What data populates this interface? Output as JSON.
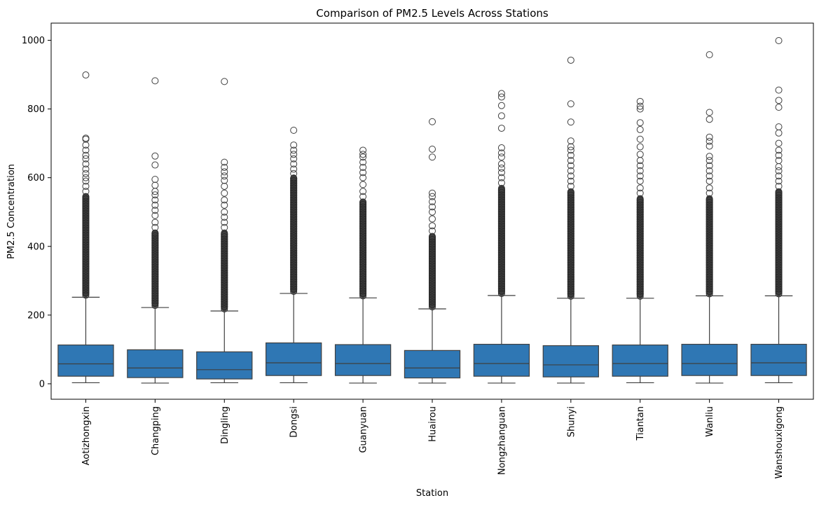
{
  "chart_data": {
    "type": "box",
    "title": "Comparison of PM2.5 Levels Across Stations",
    "xlabel": "Station",
    "ylabel": "PM2.5 Concentration",
    "ylim": [
      -45,
      1050
    ],
    "yticks": [
      "0",
      "200",
      "400",
      "600",
      "800",
      "1000"
    ],
    "box_color": "#2f77b4",
    "categories": [
      "Aotizhongxin",
      "Changping",
      "Dingling",
      "Dongsi",
      "Guanyuan",
      "Huairou",
      "Nongzhanguan",
      "Shunyi",
      "Tiantan",
      "Wanliu",
      "Wanshouxigong"
    ],
    "series": [
      {
        "min": 3,
        "q1": 22,
        "median": 58,
        "q3": 113,
        "whisker_high": 252,
        "outlier_dense_top": 545,
        "outliers": [
          560,
          575,
          590,
          600,
          612,
          625,
          640,
          655,
          665,
          680,
          695,
          712,
          715,
          899
        ]
      },
      {
        "min": 2,
        "q1": 18,
        "median": 46,
        "q3": 99,
        "whisker_high": 222,
        "outlier_dense_top": 440,
        "outliers": [
          455,
          470,
          490,
          505,
          520,
          535,
          550,
          560,
          578,
          595,
          637,
          663,
          882
        ]
      },
      {
        "min": 3,
        "q1": 14,
        "median": 41,
        "q3": 93,
        "whisker_high": 212,
        "outlier_dense_top": 440,
        "outliers": [
          455,
          470,
          485,
          500,
          520,
          535,
          555,
          575,
          592,
          605,
          617,
          630,
          645,
          880
        ]
      },
      {
        "min": 3,
        "q1": 24,
        "median": 61,
        "q3": 119,
        "whisker_high": 263,
        "outlier_dense_top": 600,
        "outliers": [
          612,
          625,
          640,
          655,
          668,
          680,
          695,
          738
        ]
      },
      {
        "min": 2,
        "q1": 24,
        "median": 59,
        "q3": 114,
        "whisker_high": 250,
        "outlier_dense_top": 530,
        "outliers": [
          545,
          560,
          580,
          600,
          615,
          630,
          645,
          660,
          668,
          680
        ]
      },
      {
        "min": 2,
        "q1": 17,
        "median": 46,
        "q3": 97,
        "whisker_high": 218,
        "outlier_dense_top": 430,
        "outliers": [
          445,
          460,
          480,
          500,
          515,
          530,
          545,
          555,
          660,
          683,
          763
        ]
      },
      {
        "min": 2,
        "q1": 22,
        "median": 59,
        "q3": 115,
        "whisker_high": 257,
        "outlier_dense_top": 570,
        "outliers": [
          585,
          600,
          615,
          628,
          640,
          660,
          672,
          687,
          744,
          780,
          810,
          835,
          845
        ]
      },
      {
        "min": 2,
        "q1": 20,
        "median": 55,
        "q3": 111,
        "whisker_high": 249,
        "outlier_dense_top": 560,
        "outliers": [
          575,
          590,
          605,
          620,
          635,
          650,
          665,
          680,
          690,
          707,
          762,
          815,
          942
        ]
      },
      {
        "min": 3,
        "q1": 22,
        "median": 59,
        "q3": 113,
        "whisker_high": 249,
        "outlier_dense_top": 540,
        "outliers": [
          555,
          570,
          590,
          605,
          620,
          635,
          650,
          668,
          690,
          712,
          740,
          760,
          800,
          808,
          822
        ]
      },
      {
        "min": 2,
        "q1": 24,
        "median": 59,
        "q3": 115,
        "whisker_high": 256,
        "outlier_dense_top": 540,
        "outliers": [
          555,
          570,
          590,
          605,
          620,
          635,
          650,
          662,
          692,
          706,
          718,
          770,
          790,
          958
        ]
      },
      {
        "min": 3,
        "q1": 24,
        "median": 61,
        "q3": 115,
        "whisker_high": 256,
        "outlier_dense_top": 560,
        "outliers": [
          575,
          590,
          605,
          620,
          632,
          650,
          665,
          680,
          700,
          730,
          748,
          805,
          825,
          855,
          999
        ]
      }
    ]
  }
}
